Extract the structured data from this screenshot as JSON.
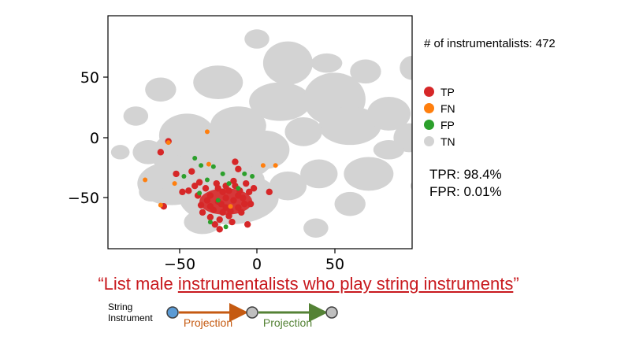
{
  "chart_data": {
    "type": "scatter",
    "title": "",
    "xlabel": "",
    "ylabel": "",
    "xlim": [
      -98,
      130
    ],
    "ylim": [
      -92,
      103
    ],
    "x_ticks": [
      "−50",
      "0",
      "50"
    ],
    "x_tick_values": [
      -50,
      0,
      50
    ],
    "y_ticks": [
      "50",
      "0",
      "−50"
    ],
    "y_tick_values": [
      50,
      0,
      -50
    ],
    "grid": false,
    "legend_position": "right",
    "series": [
      {
        "name": "TP",
        "color": "#d62728",
        "points": [
          [
            -30,
            -48
          ],
          [
            -25,
            -53
          ],
          [
            -20,
            -58
          ],
          [
            -15,
            -52
          ],
          [
            -22,
            -45
          ],
          [
            -28,
            -60
          ],
          [
            -18,
            -65
          ],
          [
            -12,
            -48
          ],
          [
            -8,
            -55
          ],
          [
            -33,
            -42
          ],
          [
            -36,
            -56
          ],
          [
            -26,
            -38
          ],
          [
            -14,
            -40
          ],
          [
            -5,
            -45
          ],
          [
            -10,
            -62
          ],
          [
            -24,
            -68
          ],
          [
            -38,
            -48
          ],
          [
            -16,
            -70
          ],
          [
            -30,
            -66
          ],
          [
            -20,
            -50
          ],
          [
            -7,
            -38
          ],
          [
            -2,
            -42
          ],
          [
            -40,
            -40
          ],
          [
            -12,
            -58
          ],
          [
            -32,
            -52
          ],
          [
            -18,
            -44
          ],
          [
            -27,
            -72
          ],
          [
            -35,
            -62
          ],
          [
            -22,
            -62
          ],
          [
            -9,
            -50
          ],
          [
            -4,
            -55
          ],
          [
            -44,
            -44
          ],
          [
            -15,
            -36
          ],
          [
            -25,
            -42
          ],
          [
            -30,
            -57
          ],
          [
            -20,
            -40
          ],
          [
            -11,
            -44
          ],
          [
            -37,
            -37
          ],
          [
            -23,
            -55
          ],
          [
            -17,
            -61
          ],
          [
            -62,
            -12
          ],
          [
            -57,
            -3
          ],
          [
            -52,
            -30
          ],
          [
            -42,
            -28
          ],
          [
            -48,
            -45
          ],
          [
            -60,
            -57
          ],
          [
            -14,
            -20
          ],
          [
            -12,
            -26
          ],
          [
            8,
            -45
          ],
          [
            -6,
            -72
          ],
          [
            -24,
            -76
          ]
        ]
      },
      {
        "name": "FN",
        "color": "#ff7f0e",
        "points": [
          [
            -57,
            -4
          ],
          [
            -72,
            -35
          ],
          [
            -62,
            -56
          ],
          [
            -31,
            -22
          ],
          [
            -53,
            -38
          ],
          [
            -32,
            5
          ],
          [
            4,
            -23
          ],
          [
            12,
            -23
          ],
          [
            -17,
            -57
          ]
        ]
      },
      {
        "name": "FP",
        "color": "#2ca02c",
        "points": [
          [
            -40,
            -17
          ],
          [
            -36,
            -23
          ],
          [
            -47,
            -32
          ],
          [
            -28,
            -24
          ],
          [
            -22,
            -30
          ],
          [
            -18,
            -38
          ],
          [
            -12,
            -42
          ],
          [
            -32,
            -35
          ],
          [
            -25,
            -52
          ],
          [
            -30,
            -70
          ],
          [
            -20,
            -74
          ],
          [
            -37,
            -46
          ],
          [
            -8,
            -30
          ],
          [
            -3,
            -32
          ]
        ]
      }
    ],
    "annotations": {
      "count": "# of instrumentalists: 472",
      "tpr": "TPR: 98.4%",
      "fpr": "FPR: 0.01%"
    }
  },
  "query": {
    "open_quote": "“",
    "prefix": "List male ",
    "underlined": "instrumentalists who play string instruments",
    "close_quote": "”"
  },
  "pipeline": {
    "node_label_line1": "String",
    "node_label_line2": "Instrument",
    "step1": "Projection",
    "step2": "Projection",
    "step1_color": "#c55a11",
    "step2_color": "#548235",
    "start_node_color": "#5b9bd5",
    "node_color": "#bfbfbf"
  }
}
